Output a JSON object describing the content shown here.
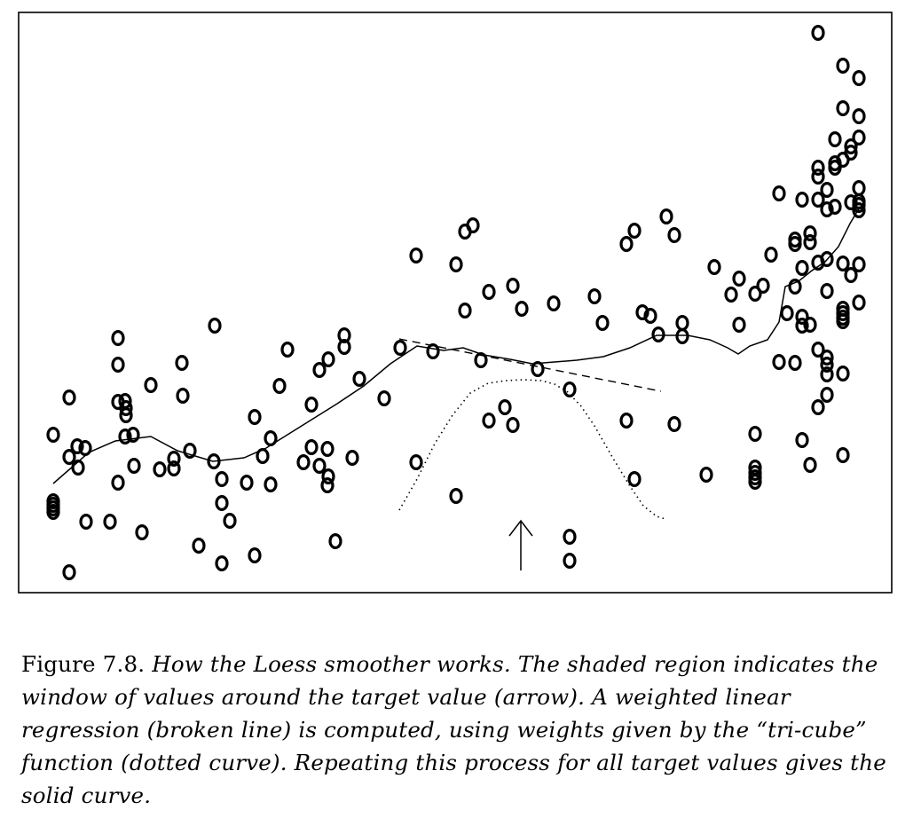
{
  "figure": {
    "label": "Figure 7.8.",
    "caption": "How the Loess smoother works. The shaded region indicates the window of values around the target value (arrow). A weighted linear regression (broken line) is computed, using weights given by the “tri-cube” function (dotted curve). Repeating this process for all target values gives the solid curve."
  },
  "chart_data": {
    "type": "scatter",
    "title": "",
    "xlabel": "",
    "ylabel": "",
    "xlim": [
      20,
      1005
    ],
    "ylim": [
      668,
      14
    ],
    "axes": "frame only, no ticks",
    "grid": false,
    "points": [
      [
        60,
        490
      ],
      [
        60,
        565
      ],
      [
        60,
        569
      ],
      [
        60,
        573
      ],
      [
        60,
        577
      ],
      [
        78,
        448
      ],
      [
        78,
        515
      ],
      [
        78,
        645
      ],
      [
        87,
        503
      ],
      [
        88,
        527
      ],
      [
        96,
        505
      ],
      [
        97,
        588
      ],
      [
        124,
        588
      ],
      [
        133,
        381
      ],
      [
        133,
        411
      ],
      [
        133,
        453
      ],
      [
        133,
        544
      ],
      [
        141,
        452
      ],
      [
        141,
        492
      ],
      [
        142,
        460
      ],
      [
        142,
        468
      ],
      [
        150,
        490
      ],
      [
        151,
        525
      ],
      [
        160,
        600
      ],
      [
        170,
        434
      ],
      [
        180,
        529
      ],
      [
        196,
        517
      ],
      [
        196,
        528
      ],
      [
        205,
        409
      ],
      [
        206,
        446
      ],
      [
        214,
        508
      ],
      [
        224,
        615
      ],
      [
        242,
        367
      ],
      [
        241,
        520
      ],
      [
        250,
        540
      ],
      [
        250,
        567
      ],
      [
        250,
        635
      ],
      [
        259,
        587
      ],
      [
        278,
        544
      ],
      [
        287,
        470
      ],
      [
        287,
        626
      ],
      [
        296,
        514
      ],
      [
        305,
        494
      ],
      [
        305,
        546
      ],
      [
        315,
        435
      ],
      [
        324,
        394
      ],
      [
        342,
        521
      ],
      [
        351,
        456
      ],
      [
        351,
        504
      ],
      [
        360,
        525
      ],
      [
        360,
        417
      ],
      [
        370,
        405
      ],
      [
        369,
        506
      ],
      [
        370,
        537
      ],
      [
        369,
        547
      ],
      [
        378,
        610
      ],
      [
        388,
        378
      ],
      [
        388,
        391
      ],
      [
        397,
        516
      ],
      [
        405,
        427
      ],
      [
        433,
        449
      ],
      [
        451,
        392
      ],
      [
        469,
        288
      ],
      [
        469,
        521
      ],
      [
        488,
        396
      ],
      [
        514,
        298
      ],
      [
        514,
        559
      ],
      [
        524,
        261
      ],
      [
        524,
        350
      ],
      [
        533,
        254
      ],
      [
        542,
        406
      ],
      [
        551,
        329
      ],
      [
        551,
        474
      ],
      [
        569,
        459
      ],
      [
        578,
        322
      ],
      [
        578,
        479
      ],
      [
        588,
        348
      ],
      [
        606,
        416
      ],
      [
        624,
        342
      ],
      [
        642,
        439
      ],
      [
        642,
        605
      ],
      [
        642,
        632
      ],
      [
        670,
        334
      ],
      [
        679,
        364
      ],
      [
        706,
        275
      ],
      [
        706,
        474
      ],
      [
        715,
        260
      ],
      [
        715,
        540
      ],
      [
        724,
        352
      ],
      [
        733,
        356
      ],
      [
        742,
        377
      ],
      [
        751,
        244
      ],
      [
        760,
        265
      ],
      [
        760,
        478
      ],
      [
        769,
        364
      ],
      [
        769,
        379
      ],
      [
        796,
        535
      ],
      [
        805,
        301
      ],
      [
        824,
        332
      ],
      [
        833,
        314
      ],
      [
        833,
        366
      ],
      [
        851,
        331
      ],
      [
        851,
        489
      ],
      [
        851,
        527
      ],
      [
        851,
        533
      ],
      [
        851,
        538
      ],
      [
        851,
        543
      ],
      [
        860,
        322
      ],
      [
        869,
        287
      ],
      [
        878,
        218
      ],
      [
        878,
        408
      ],
      [
        887,
        353
      ],
      [
        896,
        270
      ],
      [
        896,
        275
      ],
      [
        896,
        323
      ],
      [
        896,
        409
      ],
      [
        904,
        225
      ],
      [
        904,
        302
      ],
      [
        904,
        357
      ],
      [
        904,
        367
      ],
      [
        904,
        496
      ],
      [
        913,
        263
      ],
      [
        913,
        273
      ],
      [
        913,
        366
      ],
      [
        913,
        524
      ],
      [
        922,
        37
      ],
      [
        922,
        189
      ],
      [
        922,
        199
      ],
      [
        922,
        225
      ],
      [
        922,
        296
      ],
      [
        922,
        394
      ],
      [
        922,
        459
      ],
      [
        932,
        214
      ],
      [
        932,
        236
      ],
      [
        932,
        292
      ],
      [
        932,
        328
      ],
      [
        932,
        403
      ],
      [
        932,
        411
      ],
      [
        932,
        422
      ],
      [
        932,
        445
      ],
      [
        941,
        157
      ],
      [
        941,
        189
      ],
      [
        941,
        233
      ],
      [
        941,
        184
      ],
      [
        950,
        74
      ],
      [
        950,
        122
      ],
      [
        950,
        180
      ],
      [
        950,
        297
      ],
      [
        950,
        348
      ],
      [
        950,
        353
      ],
      [
        950,
        358
      ],
      [
        950,
        362
      ],
      [
        950,
        421
      ],
      [
        950,
        513
      ],
      [
        959,
        165
      ],
      [
        959,
        172
      ],
      [
        959,
        228
      ],
      [
        959,
        310
      ],
      [
        968,
        88
      ],
      [
        968,
        131
      ],
      [
        968,
        155
      ],
      [
        968,
        212
      ],
      [
        968,
        227
      ],
      [
        968,
        231
      ],
      [
        968,
        237
      ],
      [
        968,
        298
      ],
      [
        968,
        341
      ]
    ],
    "loess_curve": [
      [
        60,
        545
      ],
      [
        100,
        510
      ],
      [
        130,
        497
      ],
      [
        170,
        492
      ],
      [
        200,
        508
      ],
      [
        240,
        520
      ],
      [
        275,
        516
      ],
      [
        300,
        505
      ],
      [
        340,
        480
      ],
      [
        380,
        455
      ],
      [
        410,
        435
      ],
      [
        440,
        410
      ],
      [
        470,
        390
      ],
      [
        500,
        395
      ],
      [
        522,
        392
      ],
      [
        545,
        400
      ],
      [
        575,
        405
      ],
      [
        600,
        410
      ],
      [
        625,
        408
      ],
      [
        650,
        406
      ],
      [
        680,
        402
      ],
      [
        710,
        392
      ],
      [
        740,
        378
      ],
      [
        775,
        378
      ],
      [
        800,
        383
      ],
      [
        820,
        392
      ],
      [
        832,
        399
      ],
      [
        845,
        390
      ],
      [
        865,
        383
      ],
      [
        878,
        363
      ],
      [
        885,
        323
      ],
      [
        900,
        317
      ],
      [
        915,
        305
      ],
      [
        930,
        295
      ],
      [
        945,
        278
      ],
      [
        958,
        252
      ],
      [
        968,
        235
      ]
    ],
    "regression_line": [
      [
        450,
        382
      ],
      [
        745,
        441
      ]
    ],
    "tricube_weights": [
      [
        450,
        575
      ],
      [
        470,
        540
      ],
      [
        490,
        500
      ],
      [
        510,
        468
      ],
      [
        530,
        443
      ],
      [
        550,
        432
      ],
      [
        570,
        429
      ],
      [
        590,
        428
      ],
      [
        610,
        429
      ],
      [
        625,
        433
      ],
      [
        640,
        442
      ],
      [
        655,
        458
      ],
      [
        670,
        480
      ],
      [
        690,
        515
      ],
      [
        710,
        548
      ],
      [
        725,
        570
      ],
      [
        740,
        582
      ],
      [
        750,
        585
      ]
    ],
    "target_arrow": {
      "x": 587,
      "from_y": 643,
      "to_y": 587
    }
  }
}
